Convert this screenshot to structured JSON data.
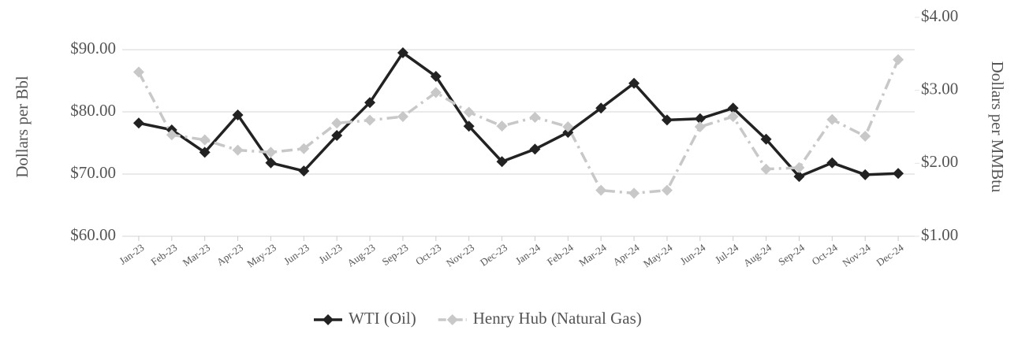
{
  "chart_data": {
    "type": "line",
    "categories": [
      "Jan-23",
      "Feb-23",
      "Mar-23",
      "Apr-23",
      "May-23",
      "Jun-23",
      "Jul-23",
      "Aug-23",
      "Sep-23",
      "Oct-23",
      "Nov-23",
      "Dec-23",
      "Jan-24",
      "Feb-24",
      "Mar-24",
      "Apr-24",
      "May-24",
      "Jun-24",
      "Jul-24",
      "Aug-24",
      "Sep-24",
      "Oct-24",
      "Nov-24",
      "Dec-24"
    ],
    "series": [
      {
        "name": "WTI (Oil)",
        "color": "#222222",
        "values": [
          78.2,
          77.1,
          73.5,
          79.5,
          71.8,
          70.5,
          76.2,
          81.5,
          89.5,
          85.7,
          77.7,
          72.0,
          74.0,
          76.7,
          80.6,
          84.6,
          78.7,
          78.9,
          80.6,
          75.6,
          69.6,
          71.8,
          69.9,
          70.1
        ]
      },
      {
        "name": "Henry Hub (Natural Gas)",
        "color": "#c8c8c8",
        "axis": "y2",
        "values": [
          3.25,
          2.39,
          2.32,
          2.18,
          2.15,
          2.2,
          2.55,
          2.59,
          2.64,
          2.97,
          2.7,
          2.51,
          2.63,
          2.5,
          1.63,
          1.59,
          1.63,
          2.5,
          2.64,
          1.92,
          1.94,
          2.6,
          2.37,
          3.42
        ]
      }
    ],
    "ylabel": "Dollars per Bbl",
    "y2label": "Dollars per MMBtu",
    "ylim": [
      60,
      95.2
    ],
    "yticks": [
      {
        "value": 60,
        "label": "$60.00"
      },
      {
        "value": 70,
        "label": "$70.00"
      },
      {
        "value": 80,
        "label": "$80.00"
      },
      {
        "value": 90,
        "label": "$90.00"
      }
    ],
    "y2lim": [
      1,
      4
    ],
    "y2ticks": [
      {
        "value": 1,
        "label": "$1.00"
      },
      {
        "value": 2,
        "label": "$2.00"
      },
      {
        "value": 3,
        "label": "$3.00"
      },
      {
        "value": 4,
        "label": "$4.00"
      }
    ],
    "grid": true,
    "legend": "bottom"
  }
}
